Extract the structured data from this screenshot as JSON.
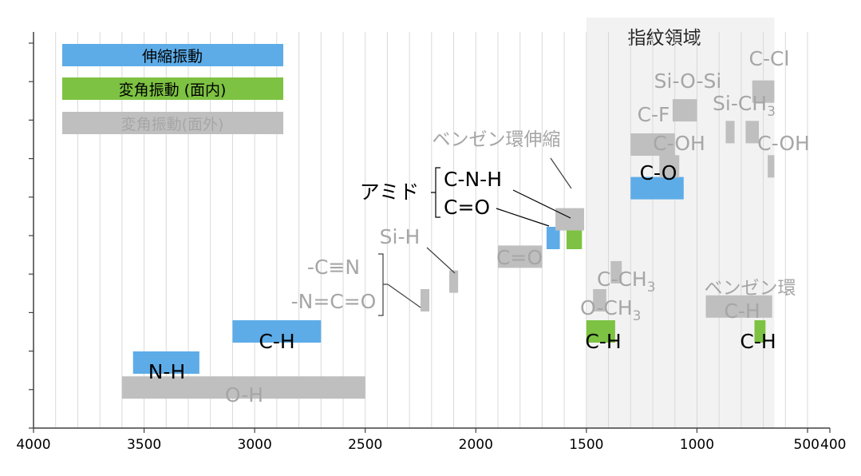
{
  "chart_data": {
    "type": "bar",
    "orientation": "horizontal-range",
    "x_axis": {
      "min": 400,
      "max": 4000,
      "reversed": true,
      "major_ticks": [
        4000,
        3500,
        3000,
        2500,
        2000,
        1500,
        1000,
        500,
        400
      ],
      "tick_labels": [
        "4000",
        "3500",
        "3000",
        "2500",
        "2000",
        "1500",
        "1000",
        "500",
        "400"
      ],
      "minor_grid_step": 100
    },
    "grid": true,
    "y_ticks": 10,
    "fingerprint_region": {
      "label": "指紋領域",
      "from": 1500,
      "to": 650
    },
    "colors": {
      "stretch": "#5DACE8",
      "bend_in": "#7DC242",
      "bend_out": "#BFBFBF",
      "gray_text": "#A6A6A6",
      "band": "#F2F2F2"
    },
    "legend": [
      {
        "label": "伸縮振動",
        "kind": "stretch"
      },
      {
        "label": "変角振動 (面内)",
        "kind": "bend_in"
      },
      {
        "label": "変角振動(面外)",
        "kind": "bend_out"
      }
    ],
    "bars": [
      {
        "label": "O-H",
        "from": 3600,
        "to": 2500,
        "kind": "bend_out",
        "row": 0.2
      },
      {
        "label": "N-H",
        "from": 3550,
        "to": 3250,
        "kind": "stretch",
        "row": 1.0
      },
      {
        "label": "C-H",
        "from": 3100,
        "to": 2700,
        "kind": "stretch",
        "row": 2.0
      },
      {
        "label": "",
        "from": 2250,
        "to": 2210,
        "kind": "bend_out",
        "row": 3.0
      },
      {
        "label": "",
        "from": 2120,
        "to": 2080,
        "kind": "bend_out",
        "row": 3.6
      },
      {
        "label": "C=O",
        "from": 1900,
        "to": 1700,
        "kind": "bend_out",
        "row": 4.4
      },
      {
        "label": "",
        "from": 1680,
        "to": 1620,
        "kind": "stretch",
        "row": 5.0
      },
      {
        "label": "",
        "from": 1590,
        "to": 1520,
        "kind": "bend_in",
        "row": 5.0
      },
      {
        "label": "",
        "from": 1640,
        "to": 1510,
        "kind": "bend_out",
        "row": 5.6
      },
      {
        "label": "C-O",
        "from": 1300,
        "to": 1060,
        "kind": "stretch",
        "row": 6.6
      },
      {
        "label": "C-OH",
        "from": 1170,
        "to": 1080,
        "kind": "bend_out",
        "row": 7.3
      },
      {
        "label": "C-OH",
        "from": 680,
        "to": 650,
        "kind": "bend_out",
        "row": 7.3
      },
      {
        "label": "C-F",
        "from": 1300,
        "to": 1100,
        "kind": "bend_out",
        "row": 8.0
      },
      {
        "label": "Si-CH3",
        "from": 870,
        "to": 830,
        "kind": "bend_out",
        "row": 8.4
      },
      {
        "label": "",
        "from": 780,
        "to": 720,
        "kind": "bend_out",
        "row": 8.4
      },
      {
        "label": "Si-O-Si",
        "from": 1110,
        "to": 1000,
        "kind": "bend_out",
        "row": 9.1
      },
      {
        "label": "C-Cl",
        "from": 750,
        "to": 650,
        "kind": "bend_out",
        "row": 9.7
      },
      {
        "label": "C-CH3",
        "from": 1390,
        "to": 1340,
        "kind": "bend_out",
        "row": 3.9
      },
      {
        "label": "O-CH3",
        "from": 1470,
        "to": 1410,
        "kind": "bend_out",
        "row": 3.0
      },
      {
        "label": "C-H",
        "from": 1500,
        "to": 1370,
        "kind": "bend_in",
        "row": 2.0
      },
      {
        "label": "C-H",
        "from": 960,
        "to": 660,
        "kind": "bend_out",
        "row": 2.8
      },
      {
        "label": "C-H",
        "from": 740,
        "to": 690,
        "kind": "bend_in",
        "row": 2.0
      }
    ],
    "annotations": [
      "-C≡N",
      "-N=C=O",
      "Si-H",
      "アミド",
      "C-N-H",
      "C=O",
      "ベンゼン環伸縮",
      "ベンゼン環"
    ]
  }
}
